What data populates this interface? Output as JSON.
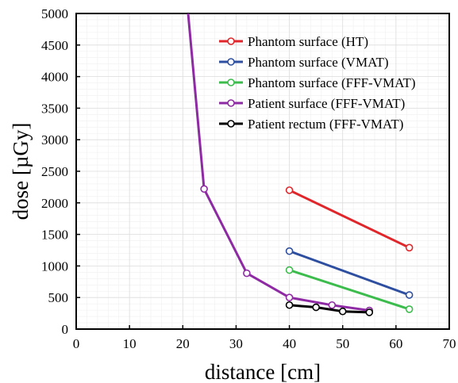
{
  "chart_data": {
    "type": "line",
    "title": "",
    "xlabel": "distance [cm]",
    "ylabel": "dose  [µGy]",
    "xlim": [
      0,
      70
    ],
    "ylim": [
      0,
      5000
    ],
    "x_ticks": [
      "0",
      "10",
      "20",
      "30",
      "40",
      "50",
      "60",
      "70"
    ],
    "y_ticks": [
      "0",
      "500",
      "1000",
      "1500",
      "2000",
      "2500",
      "3000",
      "3500",
      "4000",
      "4500",
      "5000"
    ],
    "grid": true,
    "legend_position": "top-right",
    "series": [
      {
        "name": "Phantom surface (HT)",
        "color": "#e0262b",
        "x": [
          40,
          62.5
        ],
        "y": [
          2200,
          1290
        ]
      },
      {
        "name": "Phantom surface (VMAT)",
        "color": "#2e4fa0",
        "x": [
          40,
          62.5
        ],
        "y": [
          1235,
          540
        ]
      },
      {
        "name": "Phantom surface (FFF-VMAT)",
        "color": "#3cbc4c",
        "x": [
          40,
          62.5
        ],
        "y": [
          935,
          315
        ]
      },
      {
        "name": "Patient surface (FFF-VMAT)",
        "color": "#8e2aa3",
        "x": [
          21,
          24,
          32,
          40,
          48,
          55
        ],
        "y": [
          5000,
          2220,
          885,
          500,
          380,
          295
        ],
        "marker_indices": [
          1,
          2,
          3,
          4,
          5
        ]
      },
      {
        "name": "Patient rectum (FFF-VMAT)",
        "color": "#000000",
        "x": [
          40,
          45,
          50,
          55
        ],
        "y": [
          380,
          345,
          280,
          265
        ]
      }
    ]
  }
}
